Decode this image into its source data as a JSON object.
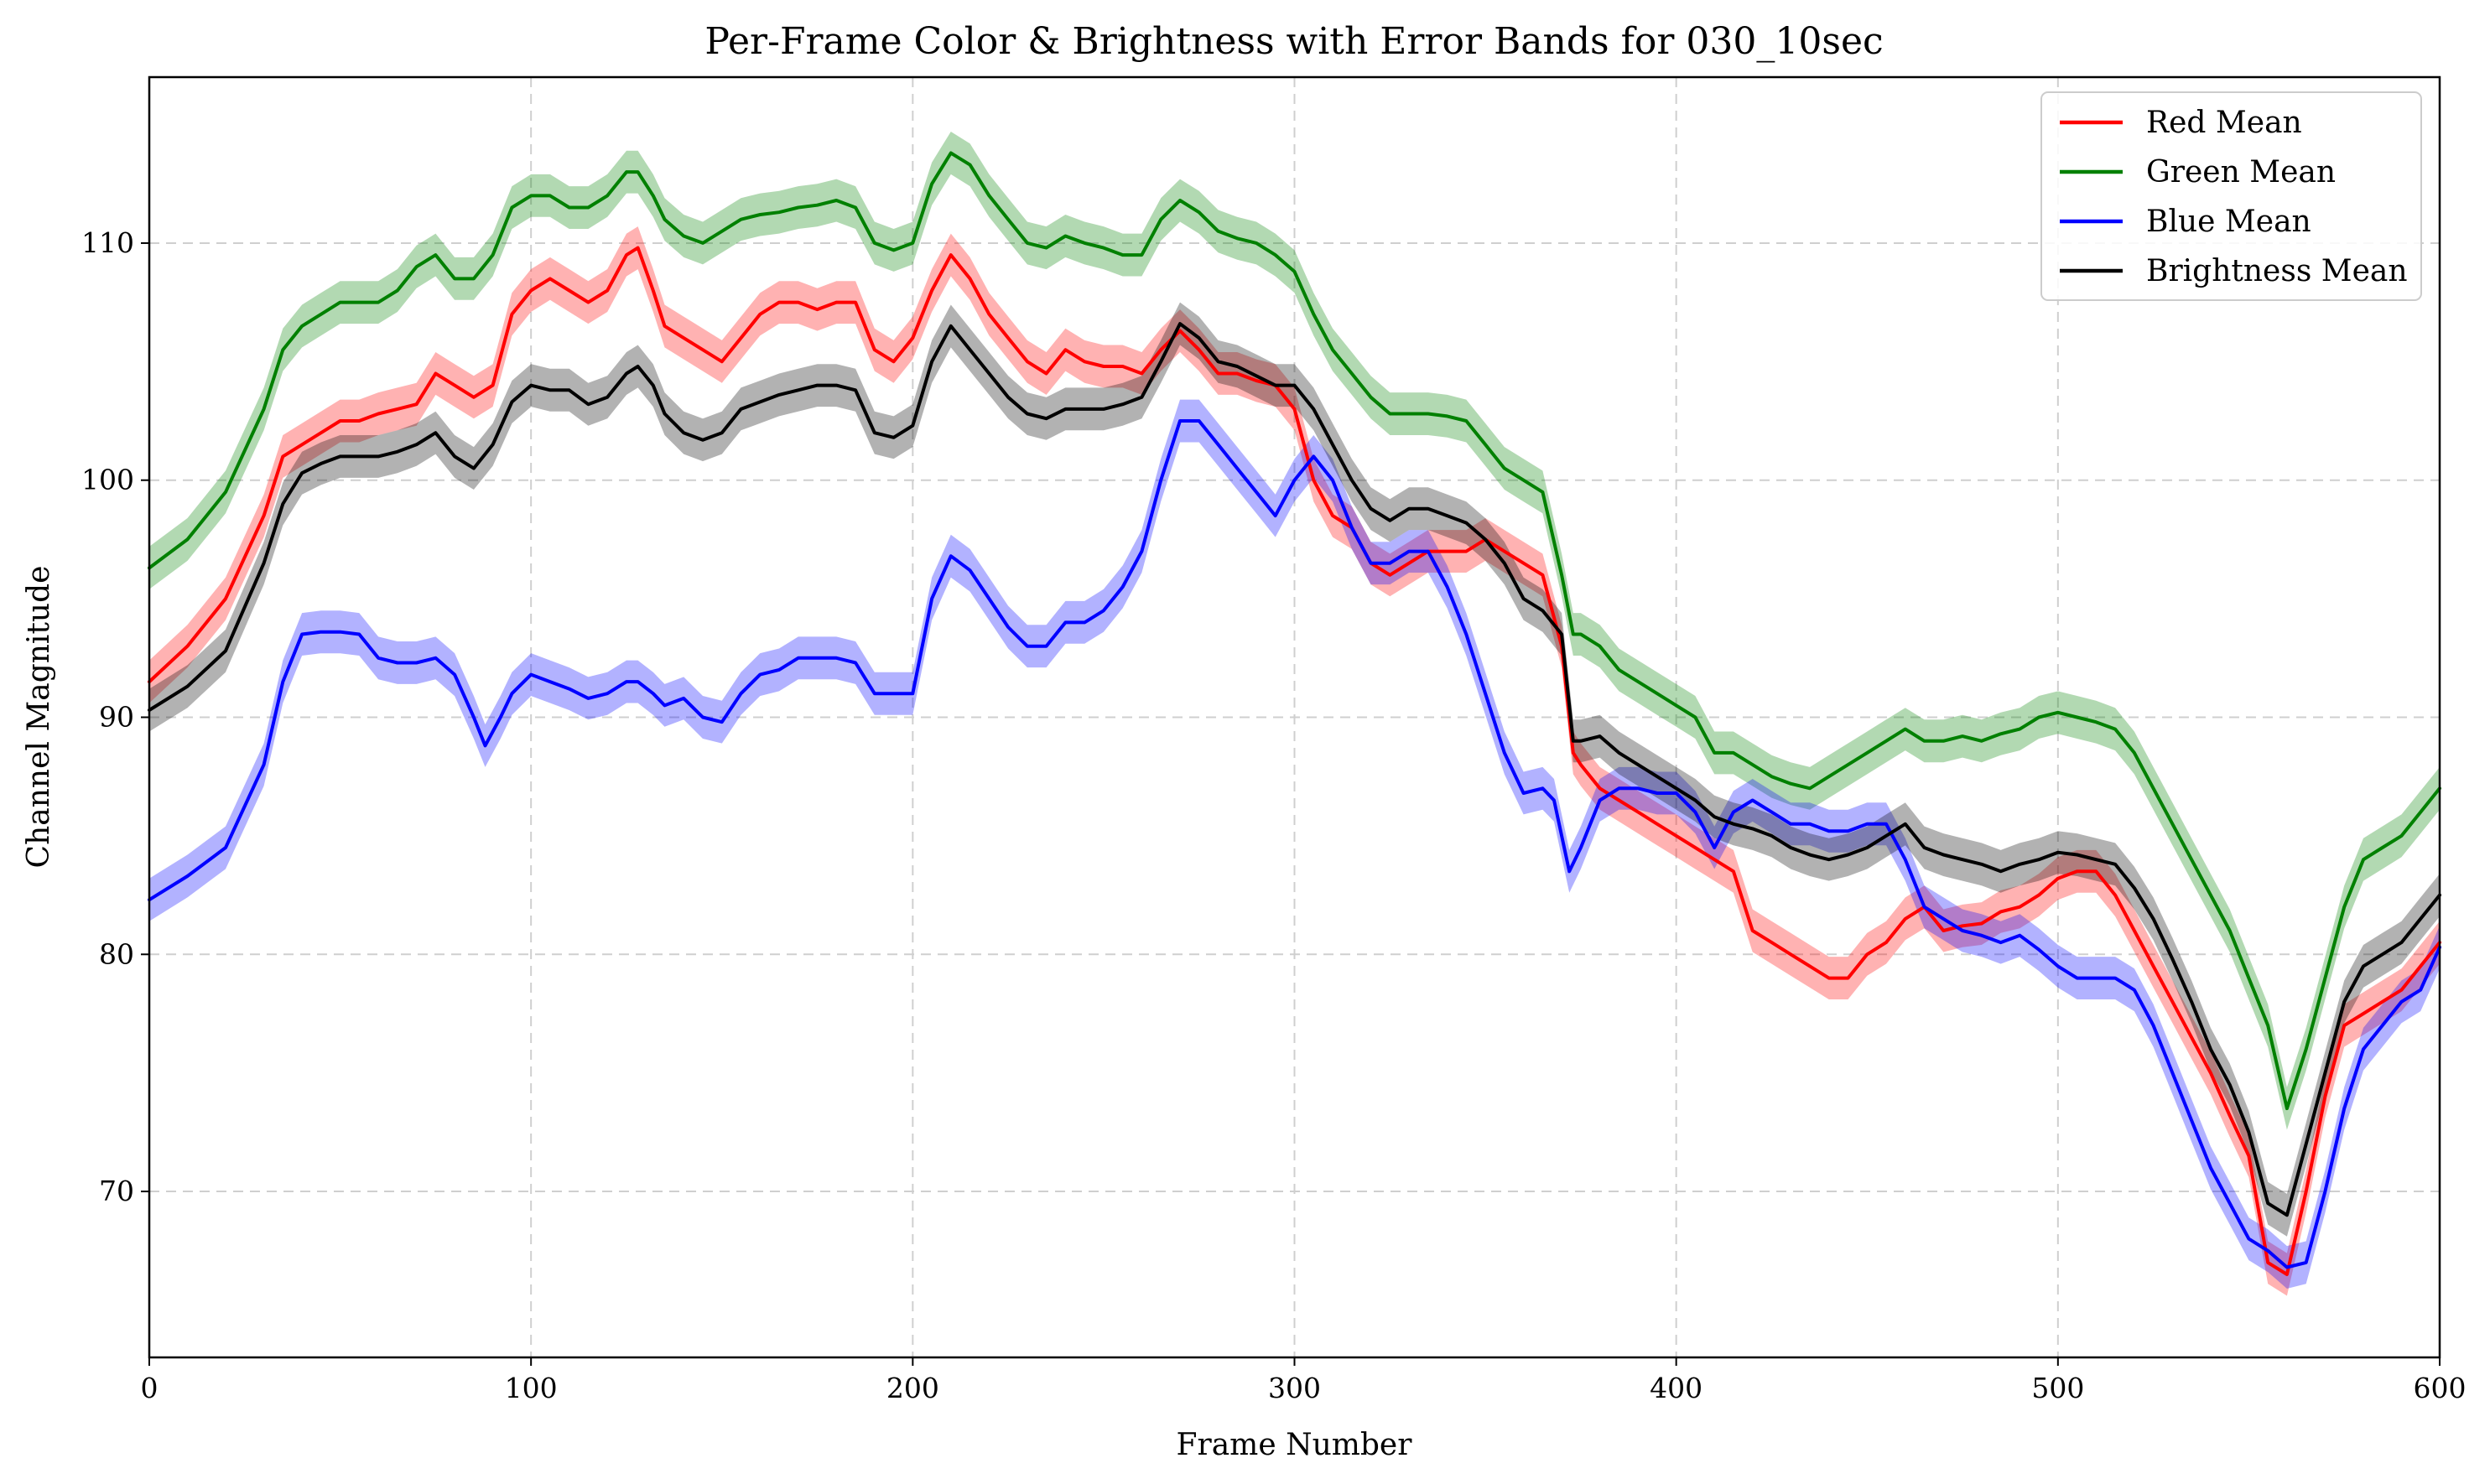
{
  "chart_data": {
    "type": "line",
    "title": "Per-Frame Color & Brightness with Error Bands for 030_10sec",
    "xlabel": "Frame Number",
    "ylabel": "Channel Magnitude",
    "xlim": [
      0,
      600
    ],
    "ylim": [
      63,
      117
    ],
    "xticks": [
      0,
      100,
      200,
      300,
      400,
      500,
      600
    ],
    "yticks": [
      70,
      80,
      90,
      100,
      110
    ],
    "grid": true,
    "legend_position": "top-right",
    "band_halfwidth": 0.9,
    "series": [
      {
        "name": "Red Mean",
        "color": "#ff0000",
        "x": [
          0,
          10,
          20,
          30,
          35,
          40,
          45,
          50,
          55,
          60,
          65,
          70,
          75,
          80,
          85,
          90,
          95,
          100,
          105,
          110,
          115,
          120,
          125,
          128,
          132,
          135,
          140,
          145,
          150,
          155,
          160,
          165,
          170,
          175,
          180,
          185,
          190,
          195,
          200,
          205,
          210,
          215,
          220,
          225,
          230,
          235,
          240,
          245,
          250,
          255,
          260,
          265,
          270,
          275,
          280,
          285,
          290,
          295,
          300,
          305,
          310,
          315,
          320,
          325,
          330,
          335,
          340,
          345,
          350,
          355,
          360,
          365,
          370,
          373,
          375,
          380,
          385,
          390,
          395,
          400,
          405,
          410,
          415,
          420,
          425,
          430,
          435,
          440,
          445,
          450,
          455,
          460,
          465,
          470,
          475,
          480,
          485,
          490,
          495,
          500,
          505,
          510,
          515,
          520,
          525,
          530,
          535,
          540,
          545,
          550,
          555,
          560,
          565,
          570,
          575,
          580,
          585,
          590,
          595,
          600
        ],
        "values": [
          91.5,
          93,
          95,
          98.5,
          101,
          101.5,
          102,
          102.5,
          102.5,
          102.8,
          103,
          103.2,
          104.5,
          104,
          103.5,
          104,
          107,
          108,
          108.5,
          108,
          107.5,
          108,
          109.5,
          109.8,
          108,
          106.5,
          106,
          105.5,
          105,
          106,
          107,
          107.5,
          107.5,
          107.2,
          107.5,
          107.5,
          105.5,
          105,
          106,
          108,
          109.5,
          108.5,
          107,
          106,
          105,
          104.5,
          105.5,
          105,
          104.8,
          104.8,
          104.5,
          105.5,
          106.3,
          105.5,
          104.5,
          104.5,
          104.2,
          104,
          103,
          100,
          98.5,
          98,
          96.5,
          96,
          96.5,
          97,
          97,
          97,
          97.5,
          97,
          96.5,
          96,
          93,
          88.5,
          88,
          87,
          86.5,
          86,
          85.5,
          85,
          84.5,
          84,
          83.5,
          81,
          80.5,
          80,
          79.5,
          79,
          79,
          80,
          80.5,
          81.5,
          82,
          81,
          81.2,
          81.3,
          81.8,
          82,
          82.5,
          83.2,
          83.5,
          83.5,
          82.5,
          81,
          79.5,
          78,
          76.5,
          75,
          73.2,
          71.5,
          67,
          66.5,
          70,
          74,
          77,
          77.5,
          78,
          78.5,
          79.5,
          80.5
        ]
      },
      {
        "name": "Green Mean",
        "color": "#008000",
        "x": [
          0,
          10,
          20,
          30,
          35,
          40,
          45,
          50,
          55,
          60,
          65,
          70,
          75,
          80,
          85,
          90,
          95,
          100,
          105,
          110,
          115,
          120,
          125,
          128,
          132,
          135,
          140,
          145,
          150,
          155,
          160,
          165,
          170,
          175,
          180,
          185,
          190,
          195,
          200,
          205,
          210,
          215,
          220,
          225,
          230,
          235,
          240,
          245,
          250,
          255,
          260,
          265,
          270,
          275,
          280,
          285,
          290,
          295,
          300,
          305,
          310,
          315,
          320,
          325,
          330,
          335,
          340,
          345,
          350,
          355,
          360,
          365,
          370,
          373,
          375,
          380,
          385,
          390,
          395,
          400,
          405,
          410,
          415,
          420,
          425,
          430,
          435,
          440,
          445,
          450,
          455,
          460,
          465,
          470,
          475,
          480,
          485,
          490,
          495,
          500,
          505,
          510,
          515,
          520,
          525,
          530,
          535,
          540,
          545,
          550,
          555,
          560,
          565,
          570,
          575,
          580,
          585,
          590,
          595,
          600
        ],
        "values": [
          96.3,
          97.5,
          99.5,
          103,
          105.5,
          106.5,
          107,
          107.5,
          107.5,
          107.5,
          108,
          109,
          109.5,
          108.5,
          108.5,
          109.5,
          111.5,
          112,
          112,
          111.5,
          111.5,
          112,
          113,
          113,
          112,
          111,
          110.3,
          110,
          110.5,
          111,
          111.2,
          111.3,
          111.5,
          111.6,
          111.8,
          111.5,
          110,
          109.7,
          110,
          112.5,
          113.8,
          113.3,
          112,
          111,
          110,
          109.8,
          110.3,
          110,
          109.8,
          109.5,
          109.5,
          111,
          111.8,
          111.3,
          110.5,
          110.2,
          110,
          109.5,
          108.8,
          107,
          105.5,
          104.5,
          103.5,
          102.8,
          102.8,
          102.8,
          102.7,
          102.5,
          101.5,
          100.5,
          100,
          99.5,
          96,
          93.5,
          93.5,
          93,
          92,
          91.5,
          91,
          90.5,
          90,
          88.5,
          88.5,
          88,
          87.5,
          87.2,
          87,
          87.5,
          88,
          88.5,
          89,
          89.5,
          89,
          89,
          89.2,
          89,
          89.3,
          89.5,
          90,
          90.2,
          90,
          89.8,
          89.5,
          88.5,
          87,
          85.5,
          84,
          82.5,
          81,
          79,
          77,
          73.5,
          76,
          79,
          82,
          84,
          84.5,
          85,
          86,
          87
        ]
      },
      {
        "name": "Blue Mean",
        "color": "#0000ff",
        "x": [
          0,
          10,
          20,
          30,
          35,
          40,
          45,
          50,
          55,
          60,
          65,
          70,
          75,
          80,
          85,
          88,
          92,
          95,
          100,
          105,
          110,
          115,
          120,
          125,
          128,
          132,
          135,
          140,
          145,
          150,
          155,
          160,
          165,
          170,
          175,
          180,
          185,
          190,
          195,
          200,
          205,
          210,
          215,
          220,
          225,
          230,
          235,
          240,
          245,
          250,
          255,
          260,
          265,
          270,
          275,
          280,
          285,
          290,
          295,
          300,
          305,
          310,
          315,
          320,
          325,
          330,
          335,
          340,
          345,
          350,
          355,
          360,
          365,
          368,
          372,
          375,
          380,
          385,
          390,
          395,
          400,
          405,
          410,
          415,
          420,
          425,
          430,
          435,
          440,
          445,
          450,
          455,
          460,
          465,
          470,
          475,
          480,
          485,
          490,
          495,
          500,
          505,
          510,
          515,
          520,
          525,
          530,
          535,
          540,
          545,
          550,
          555,
          560,
          565,
          570,
          575,
          580,
          585,
          590,
          595,
          600
        ],
        "values": [
          82.3,
          83.3,
          84.5,
          88,
          91.5,
          93.5,
          93.6,
          93.6,
          93.5,
          92.5,
          92.3,
          92.3,
          92.5,
          91.8,
          90,
          88.8,
          90,
          91,
          91.8,
          91.5,
          91.2,
          90.8,
          91,
          91.5,
          91.5,
          91,
          90.5,
          90.8,
          90,
          89.8,
          91,
          91.8,
          92,
          92.5,
          92.5,
          92.5,
          92.3,
          91,
          91,
          91,
          95,
          96.8,
          96.2,
          95,
          93.8,
          93,
          93,
          94,
          94,
          94.5,
          95.5,
          97,
          100,
          102.5,
          102.5,
          101.5,
          100.5,
          99.5,
          98.5,
          100,
          101,
          100,
          98,
          96.5,
          96.5,
          97,
          97,
          95.5,
          93.5,
          91,
          88.5,
          86.8,
          87,
          86.5,
          83.5,
          84.5,
          86.5,
          87,
          87,
          86.8,
          86.8,
          86,
          84.5,
          86,
          86.5,
          86,
          85.5,
          85.5,
          85.2,
          85.2,
          85.5,
          85.5,
          84,
          82,
          81.5,
          81,
          80.8,
          80.5,
          80.8,
          80.2,
          79.5,
          79,
          79,
          79,
          78.5,
          77,
          75,
          73,
          71,
          69.5,
          68,
          67.5,
          66.8,
          67,
          70,
          73.5,
          76,
          77,
          78,
          78.5,
          80.3
        ]
      },
      {
        "name": "Brightness Mean",
        "color": "#000000",
        "x": [
          0,
          10,
          20,
          30,
          35,
          40,
          45,
          50,
          55,
          60,
          65,
          70,
          75,
          80,
          85,
          90,
          95,
          100,
          105,
          110,
          115,
          120,
          125,
          128,
          132,
          135,
          140,
          145,
          150,
          155,
          160,
          165,
          170,
          175,
          180,
          185,
          190,
          195,
          200,
          205,
          210,
          215,
          220,
          225,
          230,
          235,
          240,
          245,
          250,
          255,
          260,
          265,
          270,
          275,
          280,
          285,
          290,
          295,
          300,
          305,
          310,
          315,
          320,
          325,
          330,
          335,
          340,
          345,
          350,
          355,
          360,
          365,
          370,
          373,
          375,
          380,
          385,
          390,
          395,
          400,
          405,
          410,
          415,
          420,
          425,
          430,
          435,
          440,
          445,
          450,
          455,
          460,
          465,
          470,
          475,
          480,
          485,
          490,
          495,
          500,
          505,
          510,
          515,
          520,
          525,
          530,
          535,
          540,
          545,
          550,
          555,
          560,
          565,
          570,
          575,
          580,
          585,
          590,
          595,
          600
        ],
        "values": [
          90.3,
          91.3,
          92.8,
          96.5,
          99,
          100.3,
          100.7,
          101,
          101,
          101,
          101.2,
          101.5,
          102,
          101,
          100.5,
          101.5,
          103.3,
          104,
          103.8,
          103.8,
          103.2,
          103.5,
          104.5,
          104.8,
          104,
          102.8,
          102,
          101.7,
          102,
          103,
          103.3,
          103.6,
          103.8,
          104,
          104,
          103.8,
          102,
          101.8,
          102.3,
          105,
          106.5,
          105.5,
          104.5,
          103.5,
          102.8,
          102.6,
          103,
          103,
          103,
          103.2,
          103.5,
          105,
          106.6,
          106,
          105,
          104.8,
          104.4,
          104,
          104,
          103,
          101.5,
          100,
          98.8,
          98.3,
          98.8,
          98.8,
          98.5,
          98.2,
          97.5,
          96.5,
          95,
          94.5,
          93.5,
          89,
          89,
          89.2,
          88.5,
          88,
          87.5,
          87,
          86.5,
          85.8,
          85.5,
          85.3,
          85,
          84.5,
          84.2,
          84,
          84.2,
          84.5,
          85,
          85.5,
          84.5,
          84.2,
          84,
          83.8,
          83.5,
          83.8,
          84,
          84.3,
          84.2,
          84,
          83.8,
          82.8,
          81.5,
          79.8,
          78,
          76,
          74.5,
          72.5,
          69.5,
          69,
          72,
          75,
          78,
          79.5,
          80,
          80.5,
          81.5,
          82.5
        ]
      }
    ]
  }
}
